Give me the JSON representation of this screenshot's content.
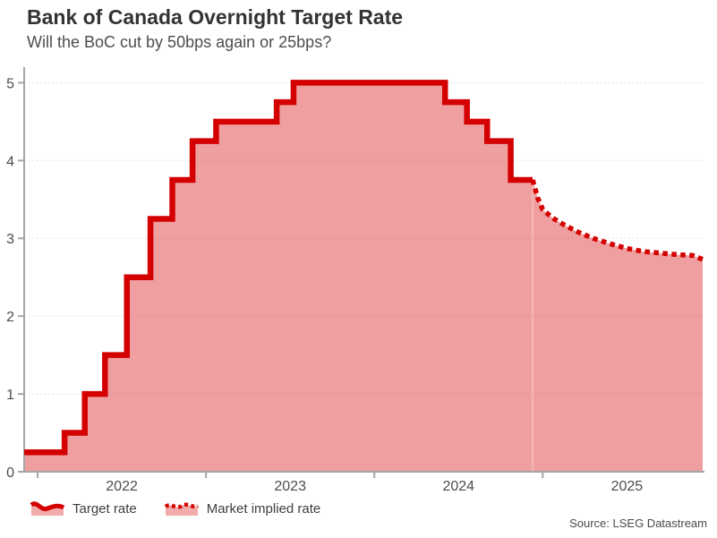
{
  "header": {
    "title": "Bank of Canada Overnight Target Rate",
    "subtitle": "Will the BoC cut by 50bps again or 25bps?"
  },
  "footer": {
    "source": "Source: LSEG Datastream"
  },
  "legend": {
    "items": [
      {
        "label": "Target rate",
        "style": "solid"
      },
      {
        "label": "Market implied rate",
        "style": "dotted"
      }
    ]
  },
  "colors": {
    "line": "#d40000",
    "fill": "#d81010",
    "fill_opacity": 0.4,
    "axis": "#a6a6a6",
    "grid": "#d9d9d9",
    "tick_text": "#4d4d4d",
    "boundary": "rgba(255,255,255,0.5)"
  },
  "chart_data": {
    "type": "area",
    "step": true,
    "title": "Bank of Canada Overnight Target Rate",
    "subtitle": "Will the BoC cut by 50bps again or 25bps?",
    "xlabel": "",
    "ylabel": "",
    "xlim": [
      2021.92,
      2025.95
    ],
    "ylim": [
      0,
      5.2
    ],
    "y_ticks": [
      0,
      1,
      2,
      3,
      4,
      5
    ],
    "x_year_ticks": [
      2022,
      2023,
      2024,
      2025
    ],
    "grid": "horizontal-dotted",
    "legend_position": "bottom-left",
    "series": [
      {
        "name": "Target rate",
        "style": "solid-step",
        "points": [
          [
            2021.92,
            0.25
          ],
          [
            2022.16,
            0.5
          ],
          [
            2022.28,
            1.0
          ],
          [
            2022.4,
            1.5
          ],
          [
            2022.53,
            2.5
          ],
          [
            2022.67,
            3.25
          ],
          [
            2022.8,
            3.75
          ],
          [
            2022.92,
            4.25
          ],
          [
            2023.06,
            4.5
          ],
          [
            2023.42,
            4.75
          ],
          [
            2023.52,
            5.0
          ],
          [
            2024.42,
            4.75
          ],
          [
            2024.55,
            4.5
          ],
          [
            2024.67,
            4.25
          ],
          [
            2024.81,
            3.75
          ]
        ],
        "end_x": 2024.94
      },
      {
        "name": "Market implied rate",
        "style": "dotted-line",
        "points": [
          [
            2024.94,
            3.75
          ],
          [
            2024.97,
            3.52
          ],
          [
            2025.0,
            3.37
          ],
          [
            2025.06,
            3.26
          ],
          [
            2025.13,
            3.17
          ],
          [
            2025.21,
            3.08
          ],
          [
            2025.3,
            3.0
          ],
          [
            2025.4,
            2.93
          ],
          [
            2025.5,
            2.87
          ],
          [
            2025.6,
            2.83
          ],
          [
            2025.7,
            2.81
          ],
          [
            2025.8,
            2.79
          ],
          [
            2025.89,
            2.78
          ],
          [
            2025.95,
            2.73
          ]
        ]
      }
    ]
  }
}
